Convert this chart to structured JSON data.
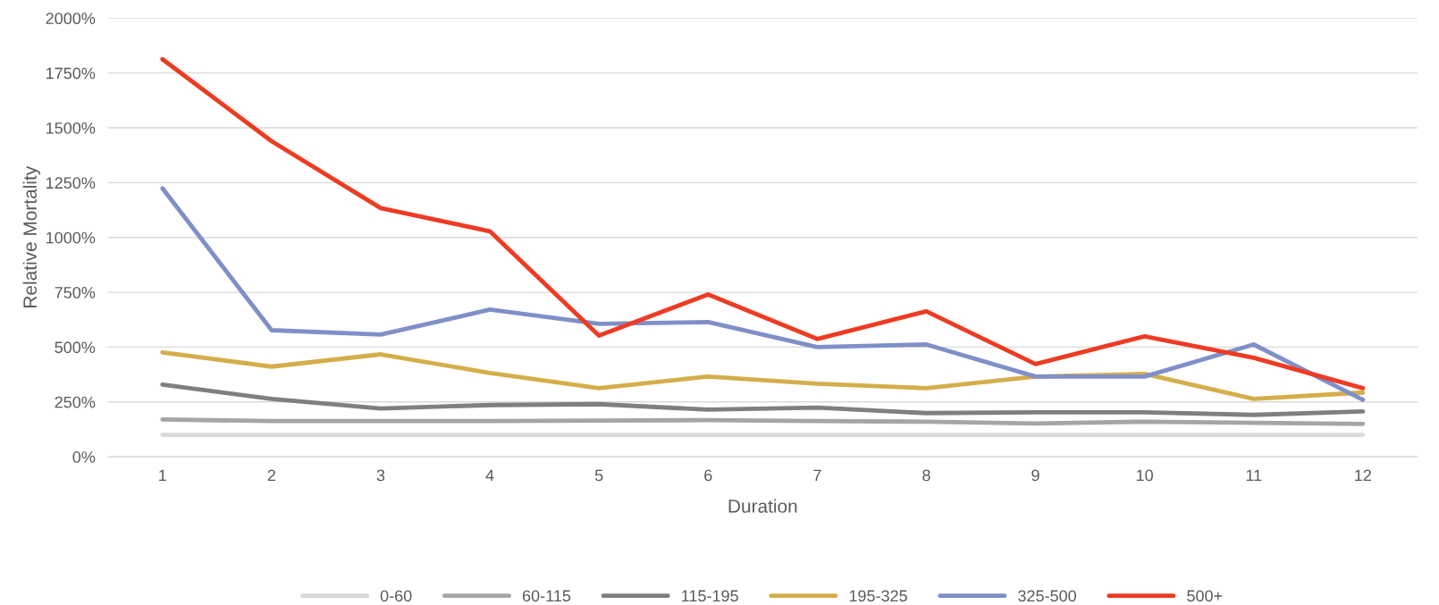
{
  "chart_data": {
    "type": "line",
    "xlabel": "Duration",
    "ylabel": "Relative Mortality",
    "categories": [
      "1",
      "2",
      "3",
      "4",
      "5",
      "6",
      "7",
      "8",
      "9",
      "10",
      "11",
      "12"
    ],
    "series": [
      {
        "name": "0-60",
        "color": "#d9d9d9",
        "values": [
          100,
          100,
          100,
          100,
          100,
          100,
          100,
          100,
          100,
          100,
          100,
          100
        ]
      },
      {
        "name": "60-115",
        "color": "#a5a5a5",
        "values": [
          170,
          163,
          163,
          163,
          165,
          167,
          163,
          160,
          152,
          160,
          155,
          150
        ]
      },
      {
        "name": "115-195",
        "color": "#7f7f7f",
        "values": [
          329,
          264,
          220,
          236,
          240,
          215,
          224,
          199,
          203,
          203,
          191,
          207
        ]
      },
      {
        "name": "195-325",
        "color": "#d4ae4a",
        "values": [
          476,
          411,
          467,
          382,
          313,
          366,
          333,
          313,
          366,
          378,
          264,
          293
        ]
      },
      {
        "name": "325-500",
        "color": "#7f8fc8",
        "values": [
          1224,
          577,
          557,
          671,
          606,
          614,
          500,
          512,
          366,
          366,
          512,
          260
        ]
      },
      {
        "name": "500+",
        "color": "#ee3b23",
        "values": [
          1813,
          1439,
          1134,
          1028,
          553,
          740,
          537,
          663,
          423,
          549,
          451,
          313
        ]
      }
    ],
    "ylim": [
      0,
      2000
    ],
    "yticks": [
      {
        "value": 0,
        "label": "0%"
      },
      {
        "value": 250,
        "label": "250%"
      },
      {
        "value": 500,
        "label": "500%"
      },
      {
        "value": 750,
        "label": "750%"
      },
      {
        "value": 1000,
        "label": "1000%"
      },
      {
        "value": 1250,
        "label": "1250%"
      },
      {
        "value": 1500,
        "label": "1500%"
      },
      {
        "value": 1750,
        "label": "1750%"
      },
      {
        "value": 2000,
        "label": "2000%"
      }
    ],
    "grid": "y",
    "legend": "bottom",
    "marker": "none",
    "line_style": "solid"
  }
}
